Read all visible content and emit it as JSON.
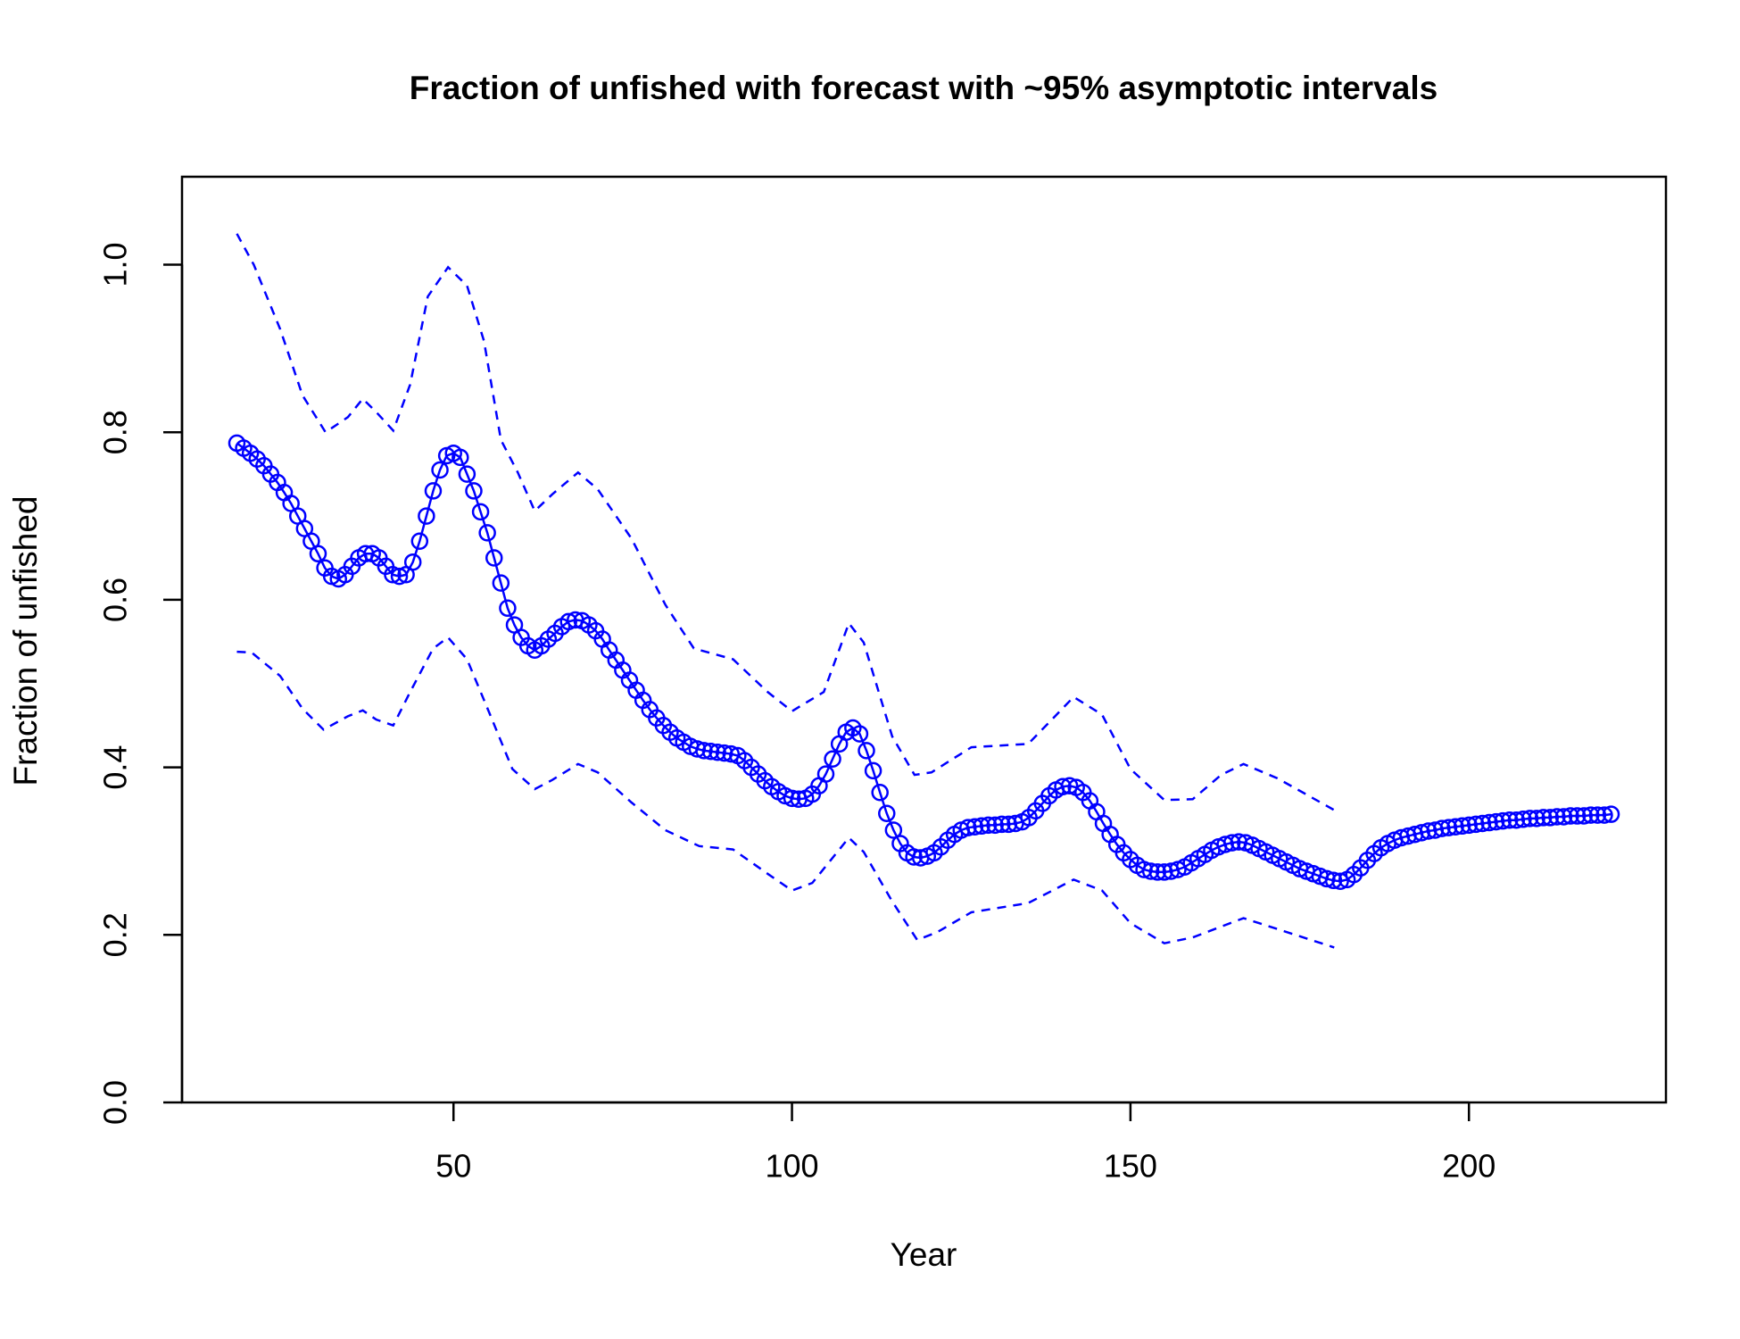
{
  "chart_data": {
    "type": "line",
    "title": "Fraction of unfished with forecast with ~95% asymptotic intervals",
    "x_label": "Year",
    "y_label": "Fraction of unfished",
    "xlim": [
      9.9,
      229.1
    ],
    "ylim": [
      0,
      1.105
    ],
    "xticks": [
      50,
      100,
      150,
      200
    ],
    "yticks": [
      {
        "value": 0,
        "label": "0.0"
      },
      0.2,
      0.4,
      0.6,
      0.8,
      {
        "value": 1,
        "label": "1.0"
      }
    ],
    "series": [
      {
        "color": "#0000ff",
        "style": "points-line",
        "x": [
          18,
          19,
          20,
          21,
          22,
          23,
          24,
          25,
          26,
          27,
          28,
          29,
          30,
          31,
          32,
          33,
          34,
          35,
          36,
          37,
          38,
          39,
          40,
          41,
          42,
          43,
          44,
          45,
          46,
          47,
          48,
          49,
          50,
          51,
          52,
          53,
          54,
          55,
          56,
          57,
          58,
          59,
          60,
          61,
          62,
          63,
          64,
          65,
          66,
          67,
          68,
          69,
          70,
          71,
          72,
          73,
          74,
          75,
          76,
          77,
          78,
          79,
          80,
          81,
          82,
          83,
          84,
          85,
          86,
          87,
          88,
          89,
          90,
          91,
          92,
          93,
          94,
          95,
          96,
          97,
          98,
          99,
          100,
          101,
          102,
          103,
          104,
          105,
          106,
          107,
          108,
          109,
          110,
          111,
          112,
          113,
          114,
          115,
          116,
          117,
          118,
          119,
          120,
          121,
          122,
          123,
          124,
          125,
          126,
          127,
          128,
          129,
          130,
          131,
          132,
          133,
          134,
          135,
          136,
          137,
          138,
          139,
          140,
          141,
          142,
          143,
          144,
          145,
          146,
          147,
          148,
          149,
          150,
          151,
          152,
          153,
          154,
          155,
          156,
          157,
          158,
          159,
          160,
          161,
          162,
          163,
          164,
          165,
          166,
          167,
          168,
          169,
          170,
          171,
          172,
          173,
          174,
          175,
          176,
          177,
          178,
          179,
          180,
          181,
          182,
          183,
          184,
          185,
          186,
          187,
          188,
          189,
          190,
          191,
          192,
          193,
          194,
          195,
          196,
          197,
          198,
          199,
          200,
          201,
          202,
          203,
          204,
          205,
          206,
          207,
          208,
          209,
          210,
          211,
          212,
          213,
          214,
          215,
          216,
          217,
          218,
          219,
          220,
          221
        ],
        "values": [
          0.787,
          0.781,
          0.775,
          0.768,
          0.76,
          0.75,
          0.74,
          0.728,
          0.715,
          0.7,
          0.685,
          0.67,
          0.655,
          0.638,
          0.628,
          0.625,
          0.63,
          0.64,
          0.65,
          0.655,
          0.655,
          0.65,
          0.64,
          0.63,
          0.628,
          0.63,
          0.645,
          0.67,
          0.7,
          0.73,
          0.755,
          0.772,
          0.775,
          0.77,
          0.75,
          0.73,
          0.705,
          0.68,
          0.65,
          0.62,
          0.59,
          0.57,
          0.555,
          0.545,
          0.54,
          0.545,
          0.553,
          0.56,
          0.568,
          0.574,
          0.576,
          0.575,
          0.57,
          0.563,
          0.553,
          0.54,
          0.528,
          0.516,
          0.504,
          0.492,
          0.48,
          0.469,
          0.459,
          0.45,
          0.442,
          0.435,
          0.43,
          0.425,
          0.422,
          0.42,
          0.419,
          0.418,
          0.417,
          0.416,
          0.414,
          0.408,
          0.4,
          0.392,
          0.384,
          0.377,
          0.371,
          0.366,
          0.363,
          0.362,
          0.363,
          0.368,
          0.378,
          0.392,
          0.41,
          0.428,
          0.442,
          0.447,
          0.44,
          0.42,
          0.396,
          0.37,
          0.345,
          0.325,
          0.309,
          0.298,
          0.293,
          0.292,
          0.294,
          0.298,
          0.305,
          0.313,
          0.32,
          0.325,
          0.328,
          0.329,
          0.33,
          0.331,
          0.331,
          0.332,
          0.332,
          0.333,
          0.335,
          0.34,
          0.348,
          0.357,
          0.366,
          0.373,
          0.377,
          0.378,
          0.376,
          0.37,
          0.36,
          0.347,
          0.333,
          0.32,
          0.308,
          0.298,
          0.29,
          0.283,
          0.278,
          0.276,
          0.275,
          0.275,
          0.276,
          0.278,
          0.281,
          0.286,
          0.291,
          0.296,
          0.301,
          0.305,
          0.308,
          0.31,
          0.311,
          0.31,
          0.307,
          0.303,
          0.299,
          0.295,
          0.291,
          0.287,
          0.283,
          0.279,
          0.276,
          0.273,
          0.27,
          0.267,
          0.265,
          0.264,
          0.266,
          0.272,
          0.28,
          0.289,
          0.297,
          0.304,
          0.309,
          0.313,
          0.316,
          0.318,
          0.32,
          0.322,
          0.324,
          0.325,
          0.327,
          0.328,
          0.329,
          0.33,
          0.331,
          0.332,
          0.333,
          0.334,
          0.335,
          0.336,
          0.337,
          0.337,
          0.338,
          0.339,
          0.339,
          0.34,
          0.34,
          0.341,
          0.341,
          0.342,
          0.342,
          0.342,
          0.343,
          0.343,
          0.343,
          0.344
        ]
      },
      {
        "color": "#0000ff",
        "style": "dashed",
        "x": [
          18,
          20.5,
          24.4,
          27.7,
          31.1,
          34.4,
          36.6,
          38.6,
          41.1,
          43.6,
          46.2,
          49.2,
          52,
          54.5,
          57,
          59.5,
          62,
          64.6,
          68.4,
          71.3,
          76.3,
          81.3,
          85.5,
          91.3,
          96.4,
          100,
          104.7,
          108.4,
          110.6,
          114.8,
          118.1,
          120.6,
          126.5,
          134.9,
          139.1,
          141.6,
          145.8,
          150,
          155,
          159.2,
          163.4,
          166.7,
          171.7,
          180.1
        ],
        "values": [
          1.037,
          1.0,
          0.923,
          0.844,
          0.8,
          0.818,
          0.84,
          0.824,
          0.802,
          0.857,
          0.962,
          0.997,
          0.975,
          0.909,
          0.791,
          0.752,
          0.706,
          0.726,
          0.752,
          0.732,
          0.673,
          0.594,
          0.542,
          0.529,
          0.49,
          0.467,
          0.49,
          0.572,
          0.549,
          0.437,
          0.391,
          0.394,
          0.424,
          0.428,
          0.463,
          0.484,
          0.463,
          0.398,
          0.361,
          0.362,
          0.391,
          0.404,
          0.387,
          0.349
        ]
      },
      {
        "color": "#0000ff",
        "style": "dashed",
        "x": [
          18,
          20.2,
          24.4,
          27.7,
          30.8,
          34.4,
          36.6,
          38.6,
          41.1,
          43.6,
          47,
          49.2,
          52,
          55.4,
          58.7,
          62,
          64.6,
          68.4,
          71.3,
          76.3,
          81.3,
          86.3,
          91.3,
          96.4,
          100,
          103,
          108.4,
          110.6,
          114.8,
          118.5,
          121.4,
          126.5,
          134.9,
          141.6,
          145.8,
          150,
          155,
          159.2,
          166.7,
          171.7,
          180.1
        ],
        "values": [
          0.538,
          0.537,
          0.509,
          0.47,
          0.445,
          0.461,
          0.468,
          0.457,
          0.45,
          0.49,
          0.542,
          0.555,
          0.529,
          0.463,
          0.398,
          0.374,
          0.385,
          0.404,
          0.394,
          0.358,
          0.325,
          0.306,
          0.302,
          0.273,
          0.253,
          0.262,
          0.316,
          0.299,
          0.24,
          0.194,
          0.203,
          0.227,
          0.238,
          0.266,
          0.253,
          0.214,
          0.19,
          0.197,
          0.22,
          0.207,
          0.185
        ]
      }
    ]
  }
}
